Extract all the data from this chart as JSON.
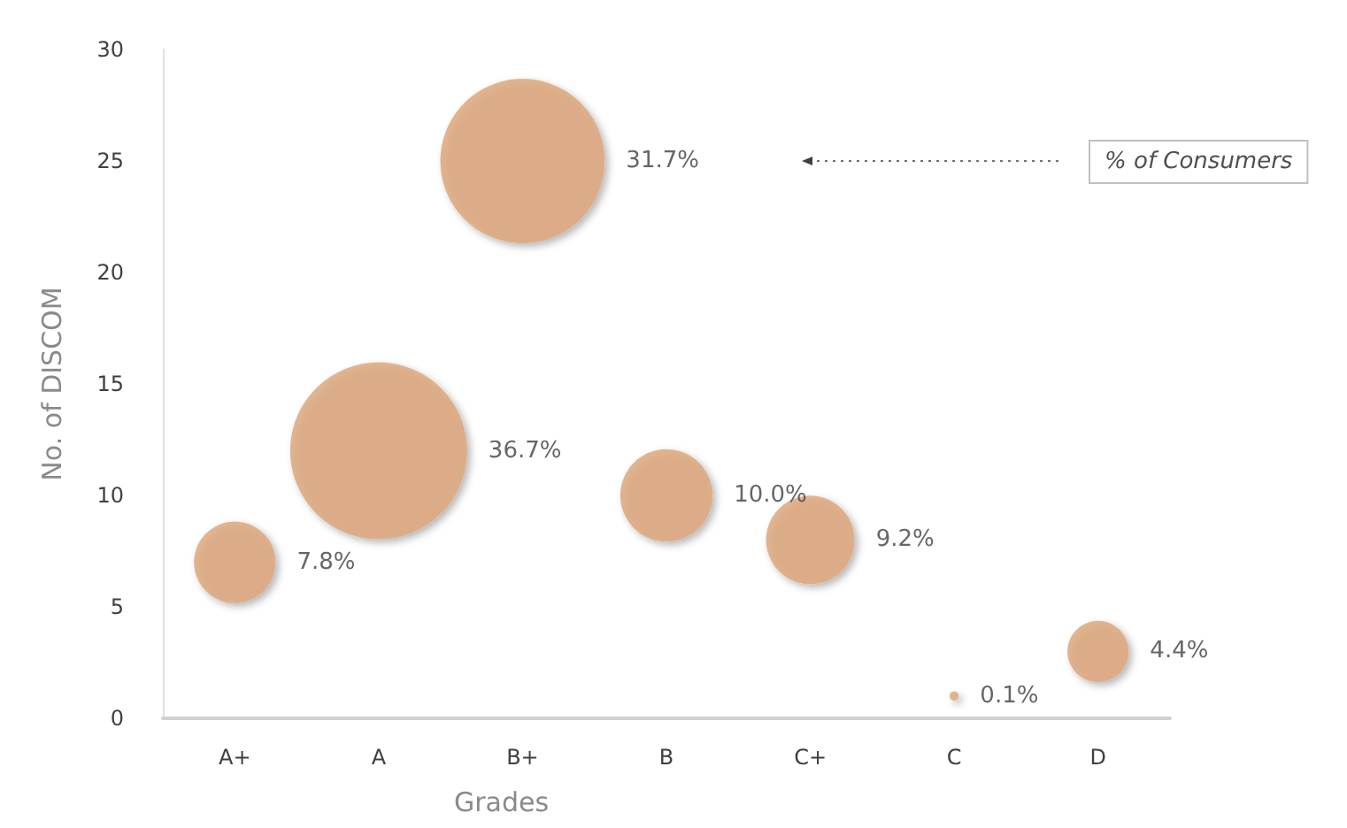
{
  "chart_data": {
    "type": "bubble",
    "xlabel": "Grades",
    "ylabel": "No. of DISCOM",
    "categories": [
      "A+",
      "A",
      "B+",
      "B",
      "C+",
      "C",
      "D"
    ],
    "values": [
      7,
      12,
      25,
      10,
      8,
      1,
      3
    ],
    "sizes": [
      7.8,
      36.7,
      31.7,
      10.0,
      9.2,
      0.1,
      4.4
    ],
    "value_labels": [
      "7.8%",
      "36.7%",
      "31.7%",
      "10.0%",
      "9.2%",
      "0.1%",
      "4.4%"
    ],
    "color": "#dba475",
    "ylim": [
      0,
      30
    ],
    "yticks": [
      0,
      5,
      10,
      15,
      20,
      25,
      30
    ],
    "grid": false,
    "annotations": [
      "% of Consumers"
    ]
  }
}
